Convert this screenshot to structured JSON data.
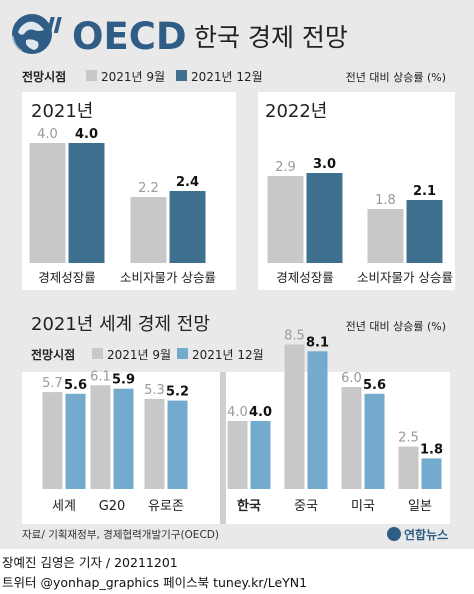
{
  "header": {
    "org": "OECD",
    "title": "한국 경제 전망"
  },
  "legend_top": {
    "label": "전망시점",
    "first": "2021년 9월",
    "second": "2021년 12월",
    "unit": "전년 대비 상승률 (%)"
  },
  "legend_bottom": {
    "label": "전망시점",
    "first": "2021년 9월",
    "second": "2021년 12월",
    "unit": "전년 대비 상승률 (%)"
  },
  "colors": {
    "background": "#e9e9e9",
    "panel": "#ffffff",
    "korea_sep": "#cfcfcf",
    "gray_bar": "#c8c8c8",
    "dark_blue_bar": "#3f6f8e",
    "light_blue_bar": "#74aacd",
    "label_gray": "#9a9a9a"
  },
  "chart_data": [
    {
      "type": "bar",
      "title": "2021년",
      "categories": [
        "경제성장률",
        "소비자물가 상승률"
      ],
      "series": [
        {
          "name": "2021년 9월",
          "values": [
            4.0,
            2.2
          ]
        },
        {
          "name": "2021년 12월",
          "values": [
            4.0,
            2.4
          ]
        }
      ],
      "ylim": [
        0,
        4.5
      ]
    },
    {
      "type": "bar",
      "title": "2022년",
      "categories": [
        "경제성장률",
        "소비자물가 상승률"
      ],
      "series": [
        {
          "name": "2021년 9월",
          "values": [
            2.9,
            1.8
          ]
        },
        {
          "name": "2021년 12월",
          "values": [
            3.0,
            2.1
          ]
        }
      ],
      "ylim": [
        0,
        4.5
      ]
    },
    {
      "type": "bar",
      "title": "2021년 세계 경제 전망",
      "categories": [
        "세계",
        "G20",
        "유로존",
        "한국",
        "중국",
        "미국",
        "일본"
      ],
      "series": [
        {
          "name": "2021년 9월",
          "values": [
            5.7,
            6.1,
            5.3,
            4.0,
            8.5,
            6.0,
            2.5
          ]
        },
        {
          "name": "2021년 12월",
          "values": [
            5.6,
            5.9,
            5.2,
            4.0,
            8.1,
            5.6,
            1.8
          ]
        }
      ],
      "ylim": [
        0,
        9
      ]
    }
  ],
  "source": "자료/ 기획재정부, 경제협력개발기구(OECD)",
  "logo": "연합뉴스",
  "footer": {
    "line1": "장예진 김영은 기자 / 20211201",
    "line2": "트위터 @yonhap_graphics  페이스북 tuney.kr/LeYN1"
  }
}
